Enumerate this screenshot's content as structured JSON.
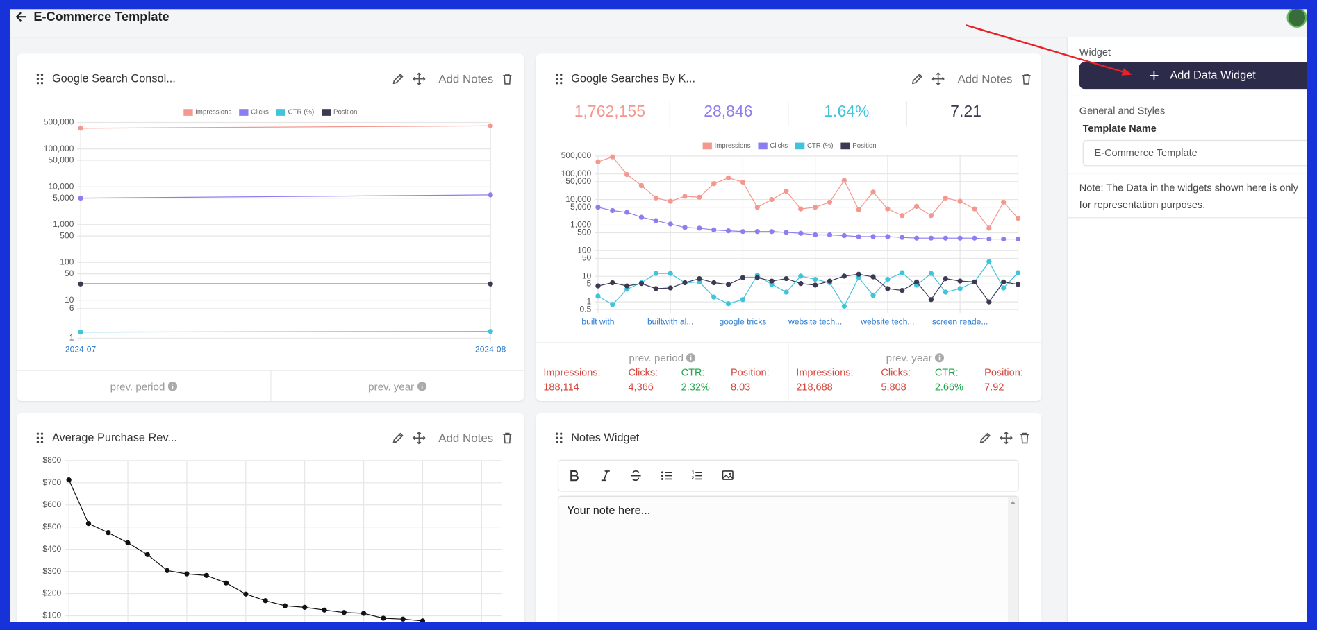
{
  "header": {
    "title": "E-Commerce Template"
  },
  "widgets": [
    {
      "title": "Google Search Consol...",
      "action": "Add Notes",
      "footer": [
        "prev. period",
        "prev. year"
      ]
    },
    {
      "title": "Google Searches By K...",
      "action": "Add Notes",
      "stats": [
        "1,762,155",
        "28,846",
        "1.64%",
        "7.21"
      ],
      "comparison": [
        {
          "label": "prev. period",
          "items": [
            [
              "Impressions:",
              "188,114"
            ],
            [
              "Clicks:",
              "4,366"
            ],
            [
              "CTR:",
              "2.32%"
            ],
            [
              "Position:",
              "8.03"
            ]
          ]
        },
        {
          "label": "prev. year",
          "items": [
            [
              "Impressions:",
              "218,688"
            ],
            [
              "Clicks:",
              "5,808"
            ],
            [
              "CTR:",
              "2.66%"
            ],
            [
              "Position:",
              "7.92"
            ]
          ]
        }
      ]
    },
    {
      "title": "Average Purchase Rev...",
      "action": "Add Notes"
    },
    {
      "title": "Notes Widget",
      "placeholder": "Your note here..."
    }
  ],
  "chart_data": [
    {
      "type": "line",
      "ylog": true,
      "grid": true,
      "legend": "top",
      "categories": [
        "2024-07",
        "2024-08"
      ],
      "series": [
        {
          "name": "Impressions",
          "color": "#f4978e",
          "values": [
            352000,
            409000
          ]
        },
        {
          "name": "Clicks",
          "color": "#8c7ef0",
          "values": [
            5000,
            6100
          ]
        },
        {
          "name": "CTR (%)",
          "color": "#40c4dc",
          "values": [
            1.44,
            1.5
          ]
        },
        {
          "name": "Position",
          "color": "#3a3a52",
          "values": [
            27,
            27
          ]
        }
      ],
      "ylim": [
        1,
        500000
      ],
      "yticks": [
        1,
        6,
        10,
        50,
        100,
        500,
        {
          "value": 1000,
          "label": "1,000"
        },
        {
          "value": 5000,
          "label": "5,000"
        },
        {
          "value": 10000,
          "label": "10,000"
        },
        {
          "value": 50000,
          "label": "50,000"
        },
        {
          "value": 100000,
          "label": "100,000"
        },
        {
          "value": 500000,
          "label": "500,000"
        }
      ]
    },
    {
      "type": "line",
      "ylog": true,
      "grid": true,
      "legend": "top",
      "categories": [
        "built with",
        null,
        null,
        null,
        null,
        "builtwith al...",
        null,
        null,
        null,
        null,
        "google tricks",
        null,
        null,
        null,
        null,
        "website tech...",
        null,
        null,
        null,
        null,
        "website tech...",
        null,
        null,
        null,
        null,
        "screen reade...",
        null,
        null,
        null,
        null
      ],
      "series": [
        {
          "name": "Impressions",
          "color": "#f4978e",
          "values": [
            295000,
            463000,
            95000,
            35000,
            11500,
            8500,
            13400,
            12300,
            41500,
            70000,
            48000,
            5000,
            10000,
            21000,
            4300,
            5000,
            7900,
            56000,
            4000,
            19500,
            4300,
            2350,
            5400,
            2350,
            11500,
            8500,
            4300,
            760,
            7900,
            1860
          ]
        },
        {
          "name": "Clicks",
          "color": "#8c7ef0",
          "values": [
            5000,
            3700,
            3150,
            2030,
            1500,
            1100,
            810,
            760,
            650,
            600,
            560,
            560,
            560,
            520,
            480,
            415,
            415,
            390,
            355,
            355,
            355,
            330,
            310,
            310,
            310,
            310,
            310,
            285,
            285,
            285
          ]
        },
        {
          "name": "CTR (%)",
          "color": "#40c4dc",
          "values": [
            1.67,
            0.79,
            3.1,
            5.6,
            12.9,
            12.9,
            5.6,
            6,
            1.55,
            0.85,
            1.23,
            11,
            4.8,
            2.4,
            10.2,
            7.6,
            5.6,
            0.68,
            8.9,
            1.8,
            7.6,
            13.8,
            4.5,
            12.9,
            2.4,
            3.3,
            6,
            37,
            3.5,
            13.8
          ]
        },
        {
          "name": "Position",
          "color": "#3a3a52",
          "values": [
            4.2,
            5.6,
            4.2,
            5.2,
            3.3,
            3.5,
            5.6,
            8.1,
            5.6,
            4.8,
            8.9,
            8.9,
            6.5,
            8.1,
            5.2,
            4.5,
            6.5,
            10.2,
            12,
            9.5,
            3.3,
            2.8,
            6,
            1.23,
            8.1,
            6.5,
            6,
            1,
            6,
            4.8
          ]
        }
      ],
      "ylim": [
        0.5,
        500000
      ],
      "yticks": [
        0.5,
        1,
        5,
        10,
        50,
        100,
        500,
        {
          "value": 1000,
          "label": "1,000"
        },
        {
          "value": 5000,
          "label": "5,000"
        },
        {
          "value": 10000,
          "label": "10,000"
        },
        {
          "value": 50000,
          "label": "50,000"
        },
        {
          "value": 100000,
          "label": "100,000"
        },
        {
          "value": 500000,
          "label": "500,000"
        }
      ]
    },
    {
      "type": "line",
      "grid": true,
      "color": "#111111",
      "values": [
        713,
        516,
        475,
        429,
        376,
        304,
        289,
        282,
        248,
        198,
        168,
        145,
        138,
        126,
        115,
        111,
        89,
        85,
        77
      ],
      "ylim": [
        0,
        800
      ],
      "yticks": [
        {
          "value": 100,
          "label": "$100"
        },
        {
          "value": 200,
          "label": "$200"
        },
        {
          "value": 300,
          "label": "$300"
        },
        {
          "value": 400,
          "label": "$400"
        },
        {
          "value": 500,
          "label": "$500"
        },
        {
          "value": 600,
          "label": "$600"
        },
        {
          "value": 700,
          "label": "$700"
        },
        {
          "value": 800,
          "label": "$800"
        }
      ]
    }
  ],
  "sidebar": {
    "section": "Widget",
    "button": "Add Data Widget",
    "group": "General and Styles",
    "field_label": "Template Name",
    "field_value": "E-Commerce Template",
    "note": "Note: The Data in the widgets shown here is only for representation purposes."
  }
}
